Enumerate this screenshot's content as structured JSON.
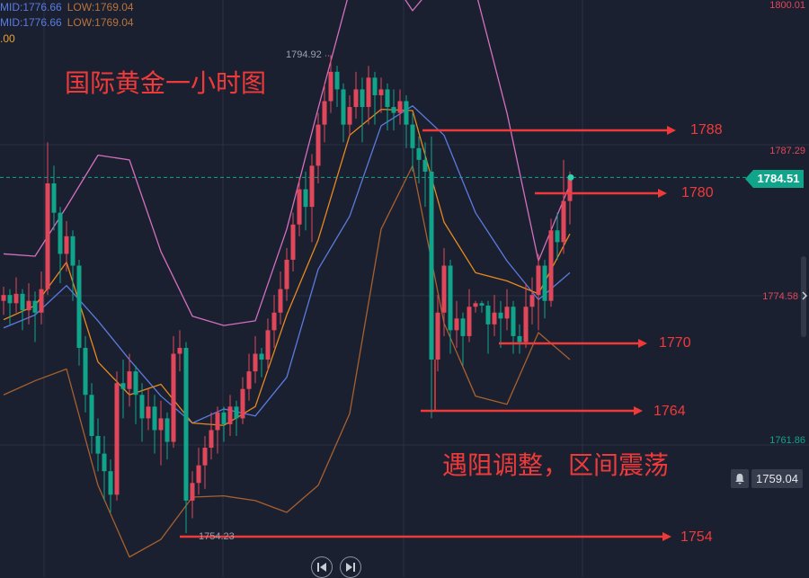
{
  "legend": {
    "row1_mid": "MID:1776.66",
    "row1_low": "LOW:1769.04",
    "row2_mid": "MID:1776.66",
    "row2_low": "LOW:1769.04",
    "row3": ".00"
  },
  "titles": {
    "main": "国际黄金一小时图",
    "comment": "遇阻调整，区间震荡"
  },
  "axis": {
    "labels": [
      {
        "text": "1800.01",
        "color": "#e0475a"
      },
      {
        "text": "1787.29",
        "color": "#e0475a"
      },
      {
        "text": "1774.58",
        "color": "#e0475a"
      },
      {
        "text": "1761.86",
        "color": "#10a58b"
      }
    ],
    "current_price": "1784.51",
    "crosshair_price": "1759.04"
  },
  "markers": {
    "high": "1794.92",
    "low": "1754.23"
  },
  "colors": {
    "up": "#e0475a",
    "down": "#10a58b",
    "upper_band": "#d46fc0",
    "mid_band": "#5b7be0",
    "ma": "#e8891e",
    "lower_band": "#a8602e",
    "annotation": "#f03a3a",
    "background": "#1b2030"
  },
  "icons": {
    "bell": "bell-icon",
    "prev": "skip-back-icon",
    "next": "skip-forward-icon"
  },
  "chart_data": {
    "type": "candlestick",
    "title": "国际黄金一小时图",
    "yticks": [
      1800.01,
      1787.29,
      1774.58,
      1761.86
    ],
    "grid": true,
    "candles_ohlc": [
      [
        1774.0,
        1775.2,
        1772.8,
        1774.5
      ],
      [
        1774.5,
        1775.0,
        1772.0,
        1773.8
      ],
      [
        1773.8,
        1776.0,
        1773.0,
        1774.6
      ],
      [
        1774.6,
        1775.0,
        1771.5,
        1773.2
      ],
      [
        1773.2,
        1775.5,
        1772.0,
        1774.0
      ],
      [
        1774.0,
        1774.8,
        1770.5,
        1773.0
      ],
      [
        1773.0,
        1776.5,
        1772.0,
        1775.0
      ],
      [
        1775.0,
        1787.5,
        1774.5,
        1784.0
      ],
      [
        1784.0,
        1785.5,
        1780.0,
        1781.5
      ],
      [
        1781.5,
        1782.0,
        1775.5,
        1778.0
      ],
      [
        1778.0,
        1780.8,
        1776.5,
        1779.5
      ],
      [
        1779.5,
        1780.0,
        1774.0,
        1777.0
      ],
      [
        1777.0,
        1777.5,
        1768.5,
        1770.0
      ],
      [
        1770.0,
        1771.0,
        1764.5,
        1766.0
      ],
      [
        1766.0,
        1767.0,
        1761.0,
        1762.5
      ],
      [
        1762.5,
        1764.0,
        1759.5,
        1761.0
      ],
      [
        1761.0,
        1762.5,
        1757.0,
        1759.5
      ],
      [
        1759.5,
        1760.5,
        1756.0,
        1757.5
      ],
      [
        1757.5,
        1768.0,
        1757.0,
        1767.0
      ],
      [
        1767.0,
        1769.0,
        1764.0,
        1766.5
      ],
      [
        1766.5,
        1769.5,
        1765.0,
        1768.0
      ],
      [
        1768.0,
        1768.5,
        1763.5,
        1766.0
      ],
      [
        1766.0,
        1767.0,
        1762.0,
        1764.0
      ],
      [
        1764.0,
        1766.5,
        1763.0,
        1765.0
      ],
      [
        1765.0,
        1766.0,
        1761.0,
        1763.0
      ],
      [
        1763.0,
        1765.5,
        1760.0,
        1764.0
      ],
      [
        1764.0,
        1764.5,
        1760.5,
        1762.0
      ],
      [
        1762.0,
        1771.0,
        1761.5,
        1769.5
      ],
      [
        1769.5,
        1771.5,
        1768.0,
        1770.0
      ],
      [
        1770.0,
        1770.5,
        1754.23,
        1757.0
      ],
      [
        1757.0,
        1759.5,
        1755.5,
        1758.5
      ],
      [
        1758.5,
        1761.5,
        1757.5,
        1760.0
      ],
      [
        1760.0,
        1762.5,
        1758.0,
        1761.5
      ],
      [
        1761.5,
        1764.5,
        1760.5,
        1763.0
      ],
      [
        1763.0,
        1765.0,
        1761.0,
        1764.5
      ],
      [
        1764.5,
        1765.0,
        1762.0,
        1763.5
      ],
      [
        1763.5,
        1766.0,
        1762.5,
        1765.0
      ],
      [
        1765.0,
        1765.5,
        1762.5,
        1764.0
      ],
      [
        1764.0,
        1767.5,
        1763.5,
        1766.5
      ],
      [
        1766.5,
        1769.5,
        1765.5,
        1768.0
      ],
      [
        1768.0,
        1771.0,
        1767.0,
        1769.5
      ],
      [
        1769.5,
        1770.0,
        1767.5,
        1769.0
      ],
      [
        1769.0,
        1772.5,
        1768.0,
        1771.5
      ],
      [
        1771.5,
        1774.5,
        1770.0,
        1773.0
      ],
      [
        1773.0,
        1776.5,
        1772.0,
        1775.0
      ],
      [
        1775.0,
        1778.5,
        1774.0,
        1777.5
      ],
      [
        1777.5,
        1781.5,
        1776.5,
        1780.5
      ],
      [
        1780.5,
        1784.5,
        1779.5,
        1783.5
      ],
      [
        1783.5,
        1785.0,
        1780.0,
        1782.0
      ],
      [
        1782.0,
        1786.5,
        1779.0,
        1785.5
      ],
      [
        1785.5,
        1790.0,
        1784.0,
        1789.0
      ],
      [
        1789.0,
        1792.5,
        1787.5,
        1791.0
      ],
      [
        1791.0,
        1794.92,
        1790.0,
        1793.5
      ],
      [
        1793.5,
        1794.0,
        1790.5,
        1792.0
      ],
      [
        1792.0,
        1792.5,
        1787.5,
        1789.0
      ],
      [
        1789.0,
        1791.5,
        1788.0,
        1790.5
      ],
      [
        1790.5,
        1793.5,
        1789.5,
        1792.0
      ],
      [
        1792.0,
        1793.0,
        1787.5,
        1790.5
      ],
      [
        1790.5,
        1794.0,
        1789.0,
        1793.0
      ],
      [
        1793.0,
        1793.5,
        1789.0,
        1791.5
      ],
      [
        1791.5,
        1793.0,
        1790.0,
        1792.0
      ],
      [
        1792.0,
        1792.5,
        1788.5,
        1790.5
      ],
      [
        1790.5,
        1792.0,
        1788.5,
        1790.0
      ],
      [
        1790.0,
        1792.0,
        1789.0,
        1791.0
      ],
      [
        1791.0,
        1791.5,
        1787.0,
        1789.0
      ],
      [
        1789.0,
        1790.0,
        1785.0,
        1787.0
      ],
      [
        1787.0,
        1788.0,
        1784.0,
        1786.0
      ],
      [
        1786.0,
        1787.5,
        1782.0,
        1785.0
      ],
      [
        1785.0,
        1788.0,
        1764.0,
        1769.0
      ],
      [
        1769.0,
        1774.5,
        1768.0,
        1773.0
      ],
      [
        1773.0,
        1778.5,
        1771.0,
        1777.0
      ],
      [
        1777.0,
        1777.5,
        1769.5,
        1771.5
      ],
      [
        1771.5,
        1774.0,
        1770.0,
        1772.5
      ],
      [
        1772.5,
        1773.0,
        1768.5,
        1771.0
      ],
      [
        1771.0,
        1775.0,
        1770.5,
        1773.5
      ],
      [
        1773.5,
        1774.0,
        1773.0,
        1773.8
      ],
      [
        1773.8,
        1774.0,
        1773.0,
        1773.6
      ],
      [
        1773.6,
        1774.0,
        1769.5,
        1772.0
      ],
      [
        1772.0,
        1774.5,
        1771.0,
        1773.0
      ],
      [
        1773.0,
        1774.0,
        1770.0,
        1772.5
      ],
      [
        1772.5,
        1775.0,
        1771.5,
        1773.5
      ],
      [
        1773.5,
        1774.0,
        1769.5,
        1771.0
      ],
      [
        1771.0,
        1772.0,
        1769.5,
        1770.5
      ],
      [
        1770.5,
        1775.5,
        1770.0,
        1773.5
      ],
      [
        1773.5,
        1776.0,
        1772.0,
        1774.5
      ],
      [
        1774.5,
        1778.0,
        1771.5,
        1777.0
      ],
      [
        1777.0,
        1777.5,
        1772.5,
        1774.0
      ],
      [
        1774.0,
        1781.0,
        1773.5,
        1780.0
      ],
      [
        1780.0,
        1781.5,
        1777.5,
        1779.0
      ],
      [
        1779.0,
        1786.0,
        1778.0,
        1782.5
      ],
      [
        1782.5,
        1785.0,
        1780.5,
        1784.51
      ]
    ],
    "lines_every_5_candles": {
      "upper_band": [
        1778.0,
        1777.8,
        1782.0,
        1786.4,
        1786.0,
        1778.2,
        1772.7,
        1771.9,
        1772.3,
        1780.1,
        1790.4,
        1800.4,
        1802.7,
        1798.7,
        1801.9,
        1800.4,
        1790.0,
        1777.4,
        1783.9
      ],
      "mid_band": [
        1771.7,
        1772.8,
        1775.3,
        1772.3,
        1769.0,
        1765.9,
        1763.6,
        1764.8,
        1764.2,
        1767.5,
        1776.7,
        1781.2,
        1788.9,
        1790.6,
        1788.1,
        1781.5,
        1777.4,
        1774.1,
        1776.4
      ],
      "ma": [
        1772.4,
        1773.6,
        1777.3,
        1768.8,
        1766.0,
        1766.9,
        1763.6,
        1763.4,
        1765.0,
        1772.8,
        1779.2,
        1788.1,
        1790.3,
        1790.2,
        1780.7,
        1776.4,
        1775.7,
        1774.6,
        1779.7
      ],
      "lower_band": [
        1766.0,
        1767.2,
        1768.2,
        1758.3,
        1752.2,
        1753.7,
        1757.3,
        1757.4,
        1757.0,
        1756.0,
        1758.3,
        1764.4,
        1780.1,
        1785.5,
        1772.1,
        1765.9,
        1765.2,
        1771.3,
        1769.0
      ]
    },
    "annotations": [
      {
        "price": 1788,
        "label": "1788"
      },
      {
        "price": 1780,
        "label": "1780"
      },
      {
        "price": 1770,
        "label": "1770"
      },
      {
        "price": 1764,
        "label": "1764"
      },
      {
        "price": 1754,
        "label": "1754"
      }
    ]
  }
}
